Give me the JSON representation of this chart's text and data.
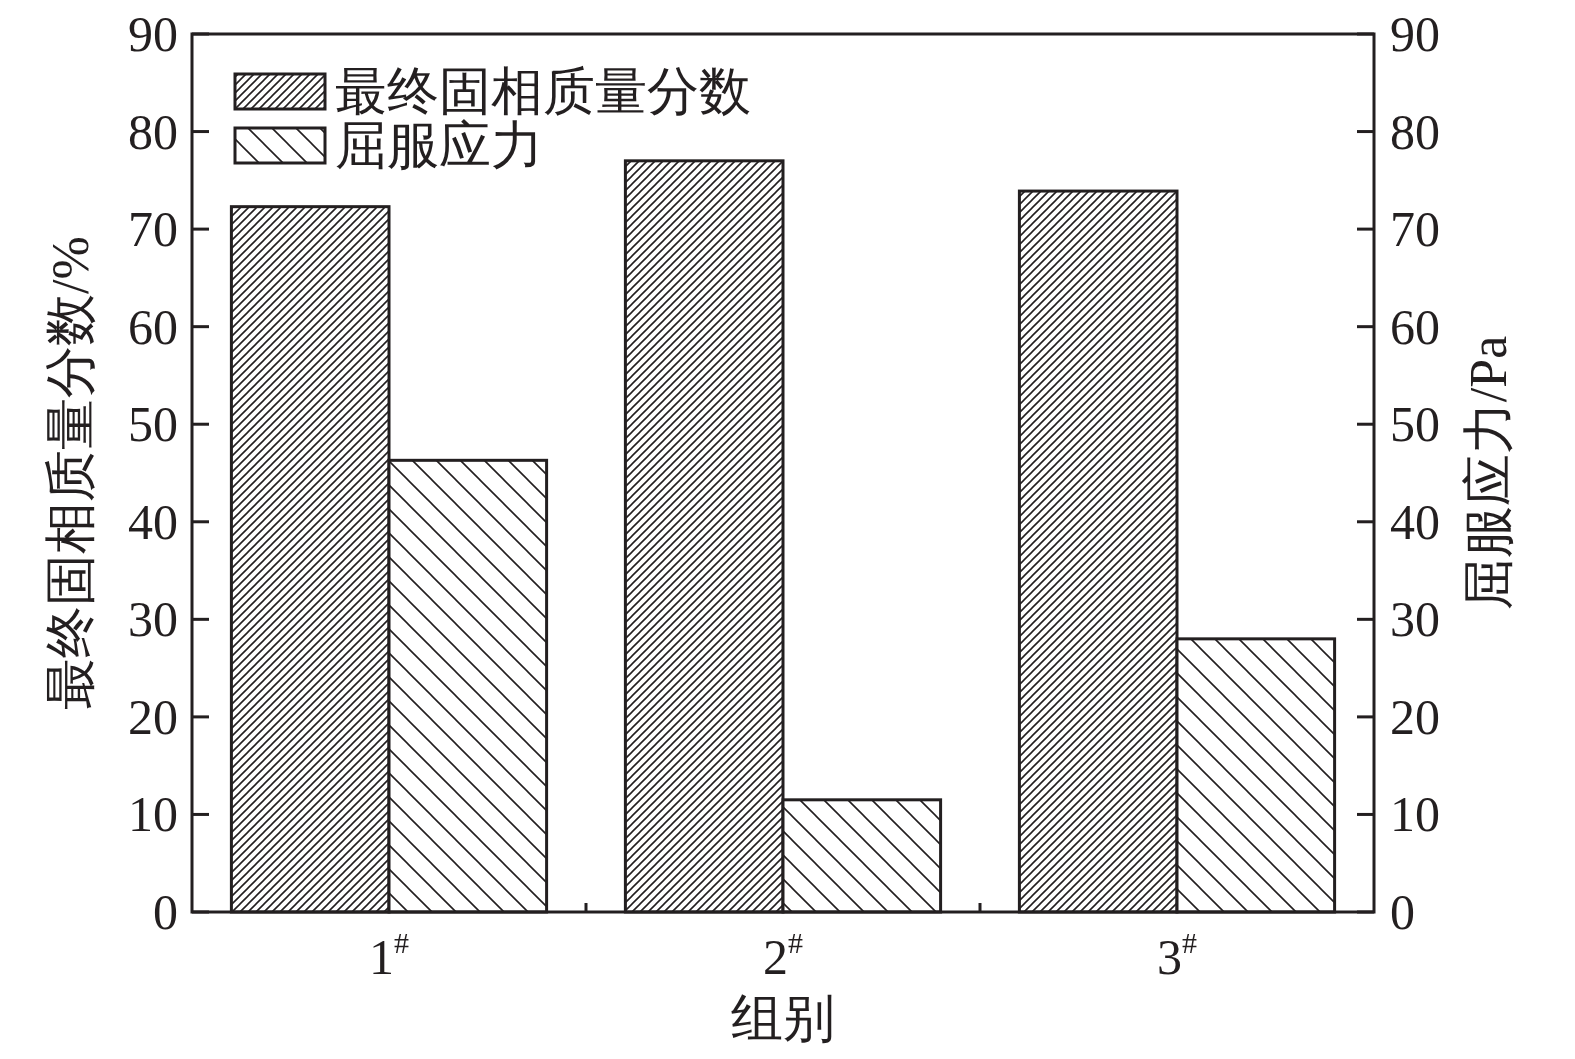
{
  "chart_data": {
    "type": "bar",
    "xlabel": "组别",
    "ylabel": "最终固相质量分数/%",
    "y2label": "屈服应力/Pa",
    "categories": [
      "1$^{#}$",
      "2$^{#}$",
      "3$^{#}$"
    ],
    "series": [
      {
        "name": "最终固相质量分数",
        "color": "#231f20",
        "values": [
          72.3,
          77.0,
          73.9
        ]
      },
      {
        "name": "屈服应力",
        "color": "#231f20",
        "values": [
          46.3,
          11.5,
          28.0
        ]
      }
    ],
    "ylim": [
      0,
      90
    ],
    "yticks": [
      0,
      10,
      20,
      30,
      40,
      50,
      60,
      70,
      80,
      90
    ],
    "y2lim": [
      0,
      90
    ],
    "y2ticks": [
      0,
      10,
      20,
      30,
      40,
      50,
      60,
      70,
      80,
      90
    ],
    "legend": "top left"
  }
}
